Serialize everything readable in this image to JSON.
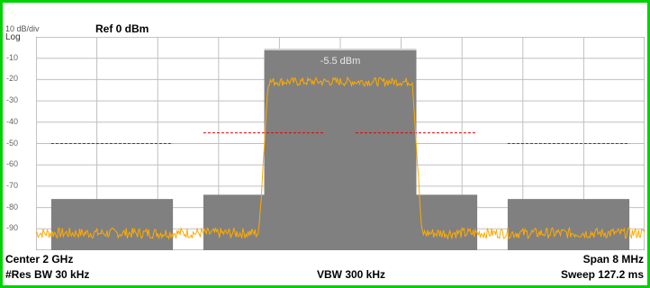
{
  "header": {
    "scale": "10 dB/div",
    "ref_label": "Ref  0 dBm",
    "log_label": "Log"
  },
  "footer": {
    "center": "Center  2 GHz",
    "span": "Span 8 MHz",
    "res_bw": "#Res BW  30 kHz",
    "vbw": "VBW  300 kHz",
    "sweep": "Sweep  127.2 ms"
  },
  "colors": {
    "border": "#00d100",
    "trace": "#ffaa00",
    "mask_block": "#808080",
    "limit_line": "#e00000",
    "grid": "#c0c0c0"
  },
  "chart_data": {
    "type": "line",
    "y_ticks": [
      "-10",
      "-20",
      "-30",
      "-40",
      "-50",
      "-60",
      "-70",
      "-80",
      "-90"
    ],
    "ylim": [
      -100,
      0
    ],
    "xlim": [
      -4,
      4
    ],
    "x_unit": "MHz offset",
    "main_channel": {
      "label": "-5.5 dBm",
      "x_range": [
        -1.0,
        1.0
      ],
      "level": -5.5
    },
    "adjacent_blocks": [
      {
        "x_range": [
          -3.8,
          -2.2
        ],
        "level": -76
      },
      {
        "x_range": [
          -1.8,
          -0.2
        ],
        "level": -74
      },
      {
        "x_range": [
          0.2,
          1.8
        ],
        "level": -74
      },
      {
        "x_range": [
          2.2,
          3.8
        ],
        "level": -76
      }
    ],
    "limit_lines": [
      {
        "x_range": [
          -3.8,
          -2.2
        ],
        "level": -50
      },
      {
        "x_range": [
          -1.8,
          -0.2
        ],
        "level": -45
      },
      {
        "x_range": [
          0.2,
          1.8
        ],
        "level": -45
      },
      {
        "x_range": [
          2.2,
          3.8
        ],
        "level": -50
      }
    ],
    "trace": {
      "channel_level": -21,
      "floor_level": -92,
      "edges": [
        -0.95,
        0.95
      ]
    }
  }
}
